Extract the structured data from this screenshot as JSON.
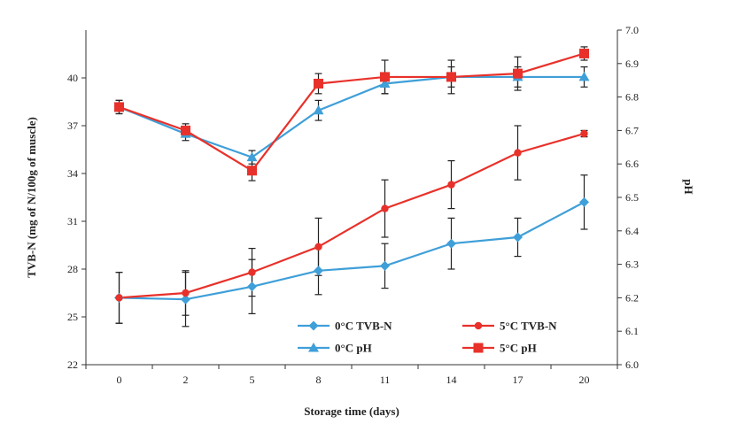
{
  "chart_data": {
    "type": "line",
    "categories": [
      "0",
      "2",
      "5",
      "8",
      "11",
      "14",
      "17",
      "20"
    ],
    "xlabel": "Storage time (days)",
    "ylabel_left": "TVB-N (mg of N/100g of muscle)",
    "ylabel_right": "pH",
    "ylim_left": [
      22,
      43
    ],
    "ylim_right": [
      6.0,
      7.0
    ],
    "yticks_left": [
      "22",
      "25",
      "28",
      "31",
      "34",
      "37",
      "40"
    ],
    "yticks_right": [
      "6.0",
      "6.1",
      "6.2",
      "6.3",
      "6.4",
      "6.5",
      "6.6",
      "6.7",
      "6.8",
      "6.9",
      "7.0"
    ],
    "grid": false,
    "legend_position": "bottom-right",
    "series": [
      {
        "name": "0°C TVB-N",
        "axis": "left",
        "marker": "diamond",
        "color": "#3f9fd8",
        "values": [
          26.2,
          26.1,
          26.9,
          27.9,
          28.2,
          29.6,
          30.0,
          32.2
        ],
        "errors": [
          1.6,
          1.7,
          1.7,
          1.5,
          1.4,
          1.6,
          1.2,
          1.7
        ]
      },
      {
        "name": "5°C TVB-N",
        "axis": "left",
        "marker": "circle",
        "color": "#e8312a",
        "values": [
          26.2,
          26.5,
          27.8,
          29.4,
          31.8,
          33.3,
          35.3,
          36.5
        ],
        "errors": [
          1.6,
          1.4,
          1.5,
          1.8,
          1.8,
          1.5,
          1.7,
          0.2
        ]
      },
      {
        "name": "0°C pH",
        "axis": "right",
        "marker": "triangle",
        "color": "#3f9fd8",
        "values": [
          6.77,
          6.69,
          6.62,
          6.76,
          6.84,
          6.86,
          6.86,
          6.86
        ],
        "errors": [
          0.02,
          0.02,
          0.02,
          0.03,
          0.03,
          0.03,
          0.03,
          0.03
        ]
      },
      {
        "name": "5°C pH",
        "axis": "right",
        "marker": "square",
        "color": "#e8312a",
        "values": [
          6.77,
          6.7,
          6.58,
          6.84,
          6.86,
          6.86,
          6.87,
          6.93
        ],
        "errors": [
          0.02,
          0.02,
          0.03,
          0.03,
          0.05,
          0.05,
          0.05,
          0.02
        ]
      }
    ]
  }
}
